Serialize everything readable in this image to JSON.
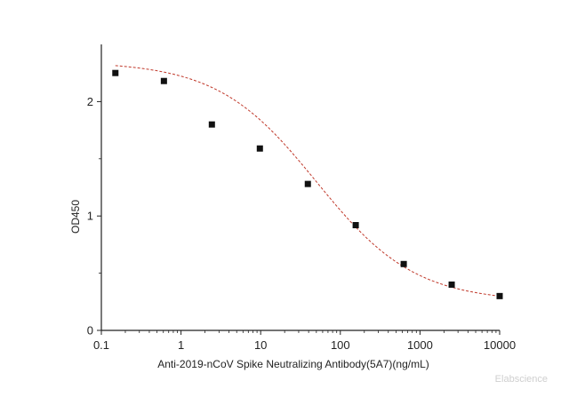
{
  "chart_data": {
    "type": "scatter",
    "x_scale": "log",
    "xlim": [
      0.1,
      10000
    ],
    "ylim": [
      0,
      2.5
    ],
    "x_ticks": [
      0.1,
      1,
      10,
      100,
      1000,
      10000
    ],
    "x_tick_labels": [
      "0.1",
      "1",
      "10",
      "100",
      "1000",
      "10000"
    ],
    "y_ticks": [
      0,
      1,
      2
    ],
    "y_tick_labels": [
      "0",
      "1",
      "2"
    ],
    "xlabel": "Anti-2019-nCoV Spike Neutralizing Antibody(5A7)(ng/mL)",
    "ylabel": "OD450",
    "grid": false,
    "legend": "none",
    "series": [
      {
        "marker": "square",
        "color": "#111111",
        "x": [
          0.15,
          0.61,
          2.44,
          9.77,
          39.1,
          156,
          625,
          2500,
          10000
        ],
        "y": [
          2.25,
          2.18,
          1.8,
          1.59,
          1.28,
          0.92,
          0.58,
          0.4,
          0.3
        ]
      }
    ],
    "fit_curve": {
      "type": "4PL",
      "color": "#c0392b",
      "style": "dashed",
      "top": 2.35,
      "bottom": 0.25,
      "ec50": 50,
      "hill": 0.7
    }
  },
  "watermark": "Elabscience"
}
